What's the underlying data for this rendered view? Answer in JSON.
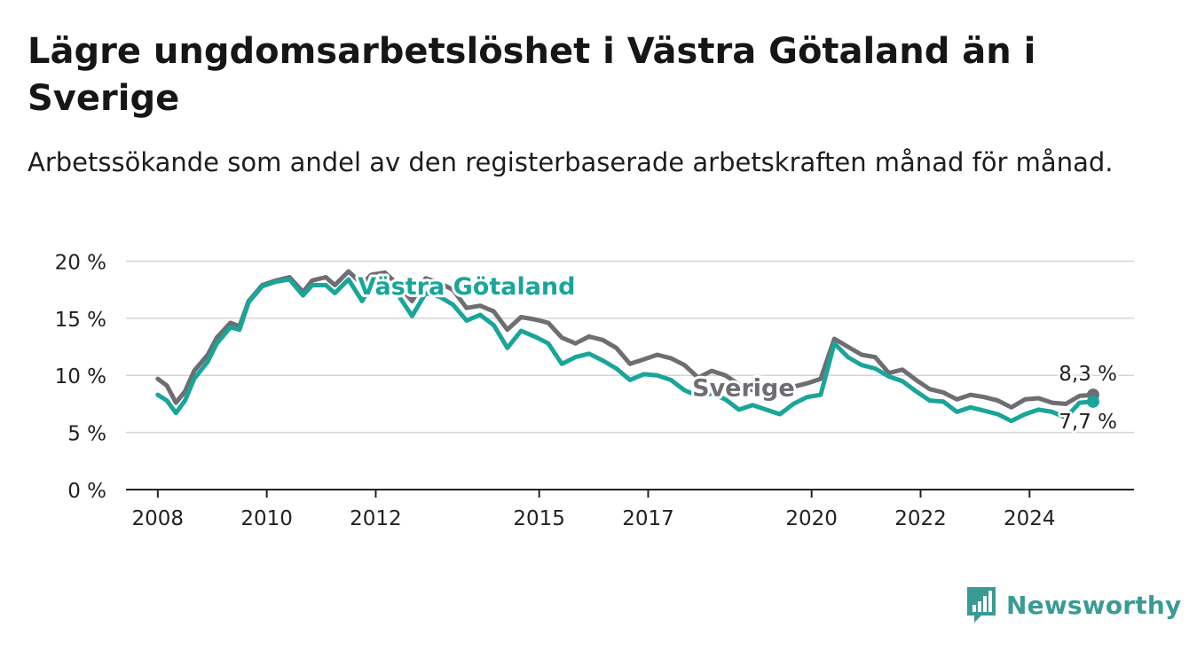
{
  "title": "Lägre ungdomsarbetslöshet i Västra Götaland än i Sverige",
  "subtitle": "Arbetssökande som andel av den registerbaserade arbetskraften månad för månad.",
  "brand": {
    "name": "Newsworthy",
    "icon": "bar-chart-icon",
    "color": "#3a9b96"
  },
  "chart_data": {
    "type": "line",
    "y_ticks": [
      0,
      5,
      10,
      15,
      20
    ],
    "y_tick_format": "{v} %",
    "ylim": [
      0,
      20.5
    ],
    "x_ticks": [
      "2008",
      "2010",
      "2012",
      "2015",
      "2017",
      "2020",
      "2022",
      "2024"
    ],
    "xlim": [
      "2007-06",
      "2025-12"
    ],
    "grid": "horizontal",
    "series": [
      {
        "name": "Sverige",
        "color": "#6d6d72",
        "label_date": "2018-10",
        "label_value": 8.2,
        "end_label": "8,3 %",
        "points": [
          [
            "2008-01",
            9.7
          ],
          [
            "2008-03",
            9.1
          ],
          [
            "2008-05",
            7.6
          ],
          [
            "2008-07",
            8.6
          ],
          [
            "2008-09",
            10.4
          ],
          [
            "2008-12",
            11.8
          ],
          [
            "2009-02",
            13.3
          ],
          [
            "2009-05",
            14.6
          ],
          [
            "2009-07",
            14.3
          ],
          [
            "2009-09",
            16.5
          ],
          [
            "2009-12",
            17.9
          ],
          [
            "2010-03",
            18.3
          ],
          [
            "2010-06",
            18.6
          ],
          [
            "2010-09",
            17.3
          ],
          [
            "2010-11",
            18.3
          ],
          [
            "2011-02",
            18.6
          ],
          [
            "2011-04",
            17.9
          ],
          [
            "2011-07",
            19.1
          ],
          [
            "2011-10",
            18.0
          ],
          [
            "2011-12",
            18.8
          ],
          [
            "2012-03",
            19.0
          ],
          [
            "2012-06",
            17.9
          ],
          [
            "2012-09",
            16.5
          ],
          [
            "2012-12",
            18.5
          ],
          [
            "2013-03",
            18.1
          ],
          [
            "2013-06",
            17.5
          ],
          [
            "2013-09",
            15.9
          ],
          [
            "2013-12",
            16.1
          ],
          [
            "2014-03",
            15.6
          ],
          [
            "2014-06",
            14.0
          ],
          [
            "2014-09",
            15.1
          ],
          [
            "2014-12",
            14.9
          ],
          [
            "2015-03",
            14.6
          ],
          [
            "2015-06",
            13.3
          ],
          [
            "2015-09",
            12.8
          ],
          [
            "2015-12",
            13.4
          ],
          [
            "2016-03",
            13.1
          ],
          [
            "2016-06",
            12.4
          ],
          [
            "2016-09",
            11.0
          ],
          [
            "2016-12",
            11.4
          ],
          [
            "2017-03",
            11.8
          ],
          [
            "2017-06",
            11.5
          ],
          [
            "2017-09",
            10.9
          ],
          [
            "2017-12",
            9.8
          ],
          [
            "2018-03",
            10.4
          ],
          [
            "2018-06",
            10.0
          ],
          [
            "2018-09",
            9.2
          ],
          [
            "2018-12",
            8.7
          ],
          [
            "2019-03",
            8.9
          ],
          [
            "2019-06",
            8.6
          ],
          [
            "2019-09",
            9.0
          ],
          [
            "2019-12",
            9.3
          ],
          [
            "2020-03",
            9.7
          ],
          [
            "2020-06",
            13.2
          ],
          [
            "2020-09",
            12.5
          ],
          [
            "2020-12",
            11.8
          ],
          [
            "2021-03",
            11.6
          ],
          [
            "2021-06",
            10.2
          ],
          [
            "2021-09",
            10.5
          ],
          [
            "2021-12",
            9.6
          ],
          [
            "2022-03",
            8.8
          ],
          [
            "2022-06",
            8.5
          ],
          [
            "2022-09",
            7.9
          ],
          [
            "2022-12",
            8.3
          ],
          [
            "2023-03",
            8.1
          ],
          [
            "2023-06",
            7.8
          ],
          [
            "2023-09",
            7.2
          ],
          [
            "2023-12",
            7.9
          ],
          [
            "2024-03",
            8.0
          ],
          [
            "2024-06",
            7.6
          ],
          [
            "2024-09",
            7.5
          ],
          [
            "2024-12",
            8.2
          ],
          [
            "2025-03",
            8.3
          ]
        ]
      },
      {
        "name": "Västra Götaland",
        "color": "#19a59a",
        "label_date": "2013-09",
        "label_value": 17.1,
        "end_label": "7,7 %",
        "points": [
          [
            "2008-01",
            8.3
          ],
          [
            "2008-03",
            7.8
          ],
          [
            "2008-05",
            6.7
          ],
          [
            "2008-07",
            7.8
          ],
          [
            "2008-09",
            9.7
          ],
          [
            "2008-12",
            11.2
          ],
          [
            "2009-02",
            12.8
          ],
          [
            "2009-05",
            14.2
          ],
          [
            "2009-07",
            14.0
          ],
          [
            "2009-09",
            16.4
          ],
          [
            "2009-12",
            17.8
          ],
          [
            "2010-03",
            18.2
          ],
          [
            "2010-06",
            18.4
          ],
          [
            "2010-09",
            17.0
          ],
          [
            "2010-11",
            17.9
          ],
          [
            "2011-02",
            17.9
          ],
          [
            "2011-04",
            17.2
          ],
          [
            "2011-07",
            18.4
          ],
          [
            "2011-10",
            16.5
          ],
          [
            "2011-12",
            17.9
          ],
          [
            "2012-03",
            17.6
          ],
          [
            "2012-06",
            17.0
          ],
          [
            "2012-09",
            15.2
          ],
          [
            "2012-12",
            17.2
          ],
          [
            "2013-03",
            16.9
          ],
          [
            "2013-06",
            16.2
          ],
          [
            "2013-09",
            14.8
          ],
          [
            "2013-12",
            15.3
          ],
          [
            "2014-03",
            14.4
          ],
          [
            "2014-06",
            12.4
          ],
          [
            "2014-09",
            13.9
          ],
          [
            "2014-12",
            13.4
          ],
          [
            "2015-03",
            12.8
          ],
          [
            "2015-06",
            11.0
          ],
          [
            "2015-09",
            11.6
          ],
          [
            "2015-12",
            11.9
          ],
          [
            "2016-03",
            11.3
          ],
          [
            "2016-06",
            10.6
          ],
          [
            "2016-09",
            9.6
          ],
          [
            "2016-12",
            10.1
          ],
          [
            "2017-03",
            10.0
          ],
          [
            "2017-06",
            9.6
          ],
          [
            "2017-09",
            8.7
          ],
          [
            "2017-12",
            8.2
          ],
          [
            "2018-03",
            8.4
          ],
          [
            "2018-06",
            7.9
          ],
          [
            "2018-09",
            7.0
          ],
          [
            "2018-12",
            7.4
          ],
          [
            "2019-03",
            7.0
          ],
          [
            "2019-06",
            6.6
          ],
          [
            "2019-09",
            7.5
          ],
          [
            "2019-12",
            8.1
          ],
          [
            "2020-03",
            8.3
          ],
          [
            "2020-06",
            12.8
          ],
          [
            "2020-09",
            11.6
          ],
          [
            "2020-12",
            10.9
          ],
          [
            "2021-03",
            10.6
          ],
          [
            "2021-06",
            9.9
          ],
          [
            "2021-09",
            9.5
          ],
          [
            "2021-12",
            8.6
          ],
          [
            "2022-03",
            7.8
          ],
          [
            "2022-06",
            7.7
          ],
          [
            "2022-09",
            6.8
          ],
          [
            "2022-12",
            7.2
          ],
          [
            "2023-03",
            6.9
          ],
          [
            "2023-06",
            6.6
          ],
          [
            "2023-09",
            6.0
          ],
          [
            "2023-12",
            6.6
          ],
          [
            "2024-03",
            7.0
          ],
          [
            "2024-06",
            6.8
          ],
          [
            "2024-09",
            6.3
          ],
          [
            "2024-12",
            7.6
          ],
          [
            "2025-03",
            7.7
          ]
        ]
      }
    ]
  }
}
